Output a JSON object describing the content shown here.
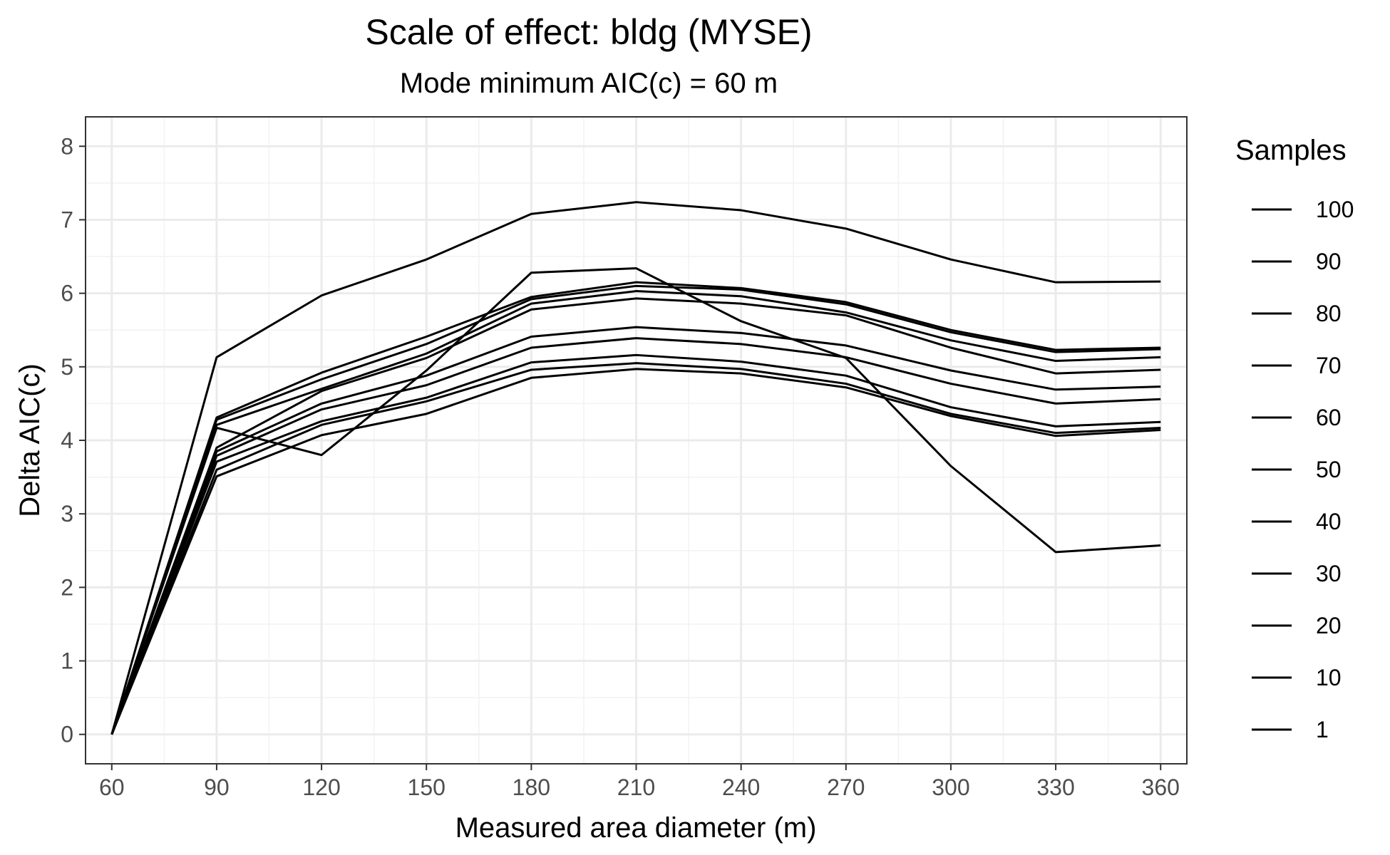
{
  "chart_data": {
    "type": "line",
    "title": "Scale of effect: bldg (MYSE)",
    "subtitle": "Mode minimum AIC(c) = 60 m",
    "xlabel": "Measured area diameter (m)",
    "ylabel": "Delta AIC(c)",
    "x": [
      60,
      90,
      120,
      150,
      180,
      210,
      240,
      270,
      300,
      330,
      360
    ],
    "xlim": [
      52.5,
      367.5
    ],
    "ylim": [
      -0.4,
      8.4
    ],
    "xticks": [
      "60",
      "90",
      "120",
      "150",
      "180",
      "210",
      "240",
      "270",
      "300",
      "330",
      "360"
    ],
    "yticks": [
      "0",
      "1",
      "2",
      "3",
      "4",
      "5",
      "6",
      "7",
      "8"
    ],
    "grid": true,
    "legend_position": "right",
    "legend_title": "Samples",
    "legend_entries": [
      "100",
      "90",
      "80",
      "70",
      "60",
      "50",
      "40",
      "30",
      "20",
      "10",
      "1"
    ],
    "line_color": "#000000",
    "series": [
      {
        "values": [
          0,
          5.13,
          5.97,
          6.46,
          7.08,
          7.24,
          7.13,
          6.88,
          6.46,
          6.15,
          6.16
        ]
      },
      {
        "values": [
          0,
          4.17,
          3.8,
          4.95,
          6.28,
          6.34,
          5.62,
          5.12,
          3.65,
          2.48,
          2.57
        ]
      },
      {
        "values": [
          0,
          4.31,
          4.92,
          5.41,
          5.95,
          6.15,
          6.07,
          5.88,
          5.5,
          5.23,
          5.26
        ]
      },
      {
        "values": [
          0,
          4.28,
          4.83,
          5.31,
          5.92,
          6.1,
          6.05,
          5.85,
          5.47,
          5.2,
          5.24
        ]
      },
      {
        "values": [
          0,
          4.21,
          4.7,
          5.18,
          5.86,
          6.03,
          5.96,
          5.74,
          5.36,
          5.08,
          5.13
        ]
      },
      {
        "values": [
          0,
          3.9,
          4.67,
          5.12,
          5.78,
          5.93,
          5.86,
          5.7,
          5.26,
          4.91,
          4.96
        ]
      },
      {
        "values": [
          0,
          3.85,
          4.5,
          4.88,
          5.41,
          5.54,
          5.46,
          5.29,
          4.95,
          4.69,
          4.73
        ]
      },
      {
        "values": [
          0,
          3.79,
          4.42,
          4.75,
          5.26,
          5.39,
          5.31,
          5.13,
          4.77,
          4.5,
          4.56
        ]
      },
      {
        "values": [
          0,
          3.71,
          4.26,
          4.58,
          5.06,
          5.16,
          5.07,
          4.88,
          4.45,
          4.19,
          4.25
        ]
      },
      {
        "values": [
          0,
          3.6,
          4.21,
          4.53,
          4.96,
          5.05,
          4.97,
          4.77,
          4.36,
          4.1,
          4.17
        ]
      },
      {
        "values": [
          0,
          3.51,
          4.07,
          4.36,
          4.85,
          4.97,
          4.91,
          4.72,
          4.33,
          4.06,
          4.14
        ]
      }
    ]
  }
}
